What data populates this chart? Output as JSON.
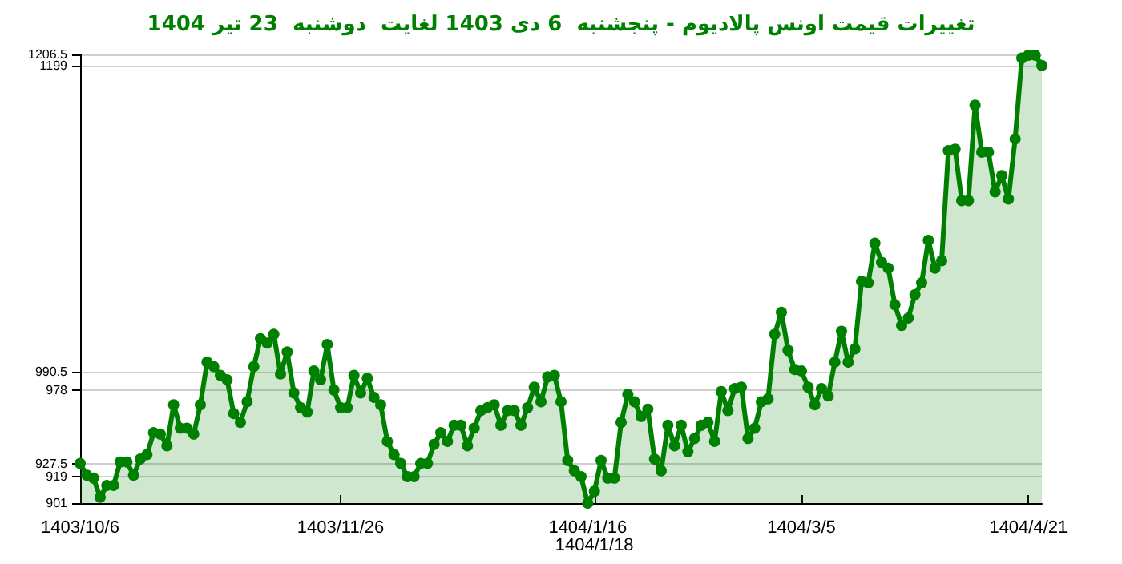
{
  "chart_data": {
    "type": "area",
    "title": "تغییرات قیمت اونس پالادیوم - پنجشنبه  6 دی 1403 لغایت  دوشنبه  23 تیر 1404",
    "categories": [
      "1403/10/6",
      null,
      null,
      null,
      null,
      null,
      null,
      null,
      null,
      null,
      null,
      null,
      null,
      null,
      null,
      null,
      null,
      null,
      null,
      null,
      null,
      null,
      null,
      null,
      null,
      null,
      null,
      null,
      null,
      null,
      null,
      null,
      null,
      null,
      null,
      null,
      null,
      null,
      null,
      "1403/11/26",
      null,
      null,
      null,
      null,
      null,
      null,
      null,
      null,
      null,
      null,
      null,
      null,
      null,
      null,
      null,
      null,
      null,
      null,
      null,
      null,
      null,
      null,
      null,
      null,
      null,
      null,
      null,
      null,
      null,
      null,
      null,
      null,
      null,
      null,
      null,
      null,
      "1404/1/16",
      "1404/1/18",
      null,
      null,
      null,
      null,
      null,
      null,
      null,
      null,
      null,
      null,
      null,
      null,
      null,
      null,
      null,
      null,
      null,
      null,
      null,
      null,
      null,
      null,
      null,
      null,
      null,
      null,
      null,
      null,
      null,
      null,
      "1404/3/5",
      null,
      null,
      null,
      null,
      null,
      null,
      null,
      null,
      null,
      null,
      null,
      null,
      null,
      null,
      null,
      null,
      null,
      null,
      null,
      null,
      null,
      null,
      null,
      null,
      null,
      null,
      null,
      null,
      null,
      null,
      null,
      null,
      null,
      "1404/4/21",
      null,
      null
    ],
    "series": [
      {
        "color": "#008000",
        "values": [
          928,
          920,
          918,
          905,
          913,
          913,
          929,
          929,
          920,
          931,
          934,
          949,
          948,
          940,
          968,
          952,
          952,
          948,
          968,
          997,
          994,
          988,
          985,
          962,
          956,
          970,
          994,
          1013,
          1010,
          1016,
          989,
          1004,
          976,
          966,
          963,
          991,
          985,
          1009,
          978,
          966,
          966,
          988,
          976,
          986,
          973,
          968,
          943,
          934,
          928,
          919,
          919,
          928,
          928,
          941,
          949,
          943,
          954,
          954,
          940,
          952,
          964,
          966,
          968,
          954,
          964,
          964,
          954,
          966,
          980,
          970,
          987,
          988,
          970,
          930,
          923,
          919,
          901,
          909,
          930,
          918,
          918,
          956,
          975,
          970,
          960,
          965,
          931,
          923,
          954,
          940,
          954,
          936,
          945,
          954,
          956,
          943,
          977,
          964,
          979,
          980,
          945,
          952,
          970,
          972,
          1016,
          1031,
          1005,
          992,
          991,
          980,
          968,
          979,
          974,
          997,
          1018,
          997,
          1006,
          1052,
          1051,
          1078,
          1065,
          1061,
          1036,
          1022,
          1027,
          1043,
          1051,
          1080,
          1061,
          1066,
          1141,
          1142,
          1107,
          1107,
          1172,
          1140,
          1140,
          1113,
          1124,
          1108,
          1149,
          1204,
          1206,
          1206,
          1199
        ]
      }
    ],
    "ylim": [
      901,
      1206.5
    ],
    "yticks": [
      901,
      919,
      927.5,
      978,
      990.5,
      1199,
      1206.5
    ],
    "grid": "y",
    "marker": "circle",
    "line_style": "solid"
  }
}
